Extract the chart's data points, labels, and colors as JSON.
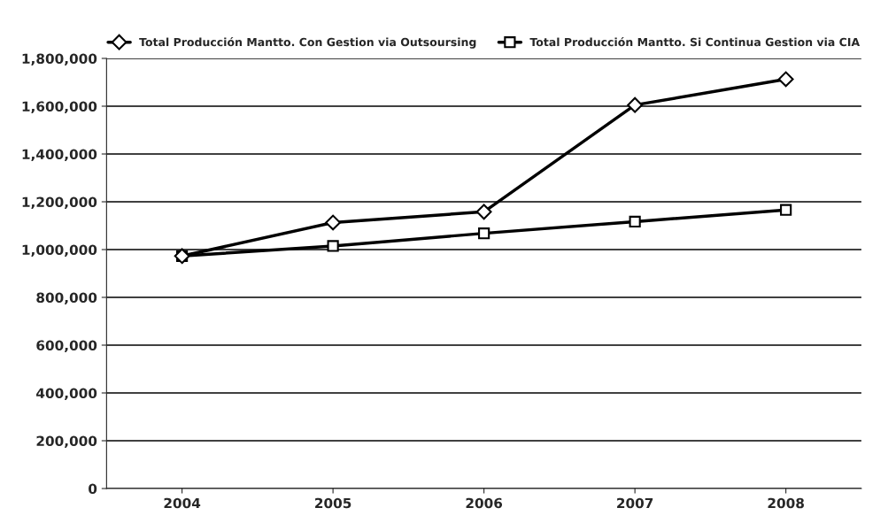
{
  "chart_data": {
    "type": "line",
    "categories": [
      "2004",
      "2005",
      "2006",
      "2007",
      "2008"
    ],
    "series": [
      {
        "name": "Total Producción Mantto. Con Gestion via Outsoursing",
        "color": "#000000",
        "marker": "diamond",
        "values": [
          973000,
          1113000,
          1158000,
          1605000,
          1713000
        ]
      },
      {
        "name": "Total Producción Mantto. Si Continua Gestion via CIA",
        "color": "#000000",
        "marker": "square",
        "values": [
          973000,
          1015000,
          1068000,
          1117000,
          1166000
        ]
      }
    ],
    "ylim": [
      0,
      1800000
    ],
    "yticks": [
      {
        "value": 0,
        "label": "0"
      },
      {
        "value": 200000,
        "label": "200,000"
      },
      {
        "value": 400000,
        "label": "400,000"
      },
      {
        "value": 600000,
        "label": "600,000"
      },
      {
        "value": 800000,
        "label": "800,000"
      },
      {
        "value": 1000000,
        "label": "1,000,000"
      },
      {
        "value": 1200000,
        "label": "1,200,000"
      },
      {
        "value": 1400000,
        "label": "1,400,000"
      },
      {
        "value": 1600000,
        "label": "1,600,000"
      },
      {
        "value": 1800000,
        "label": "1,800,000"
      }
    ],
    "grid": "y",
    "legend": "top"
  }
}
